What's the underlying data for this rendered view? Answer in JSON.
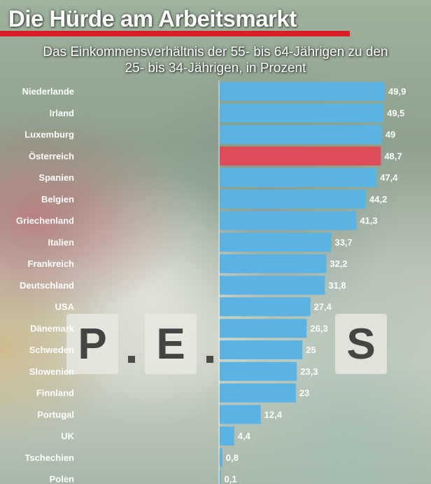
{
  "header": {
    "title": "Die Hürde am Arbeitsmarkt",
    "subtitle_line1": "Das Einkommensverhältnis der 55- bis 64-Jährigen zu den",
    "subtitle_line2": "25- bis 34-Jährigen, in Prozent"
  },
  "background": {
    "tile_letters": [
      "P",
      "E",
      "S"
    ]
  },
  "colors": {
    "bar_default": "#5ab3e2",
    "bar_highlight": "#dc4d57",
    "title_rule": "#d81d25",
    "text": "#ffffff"
  },
  "chart_data": {
    "type": "bar",
    "orientation": "horizontal",
    "title": "Die Hürde am Arbeitsmarkt",
    "subtitle": "Das Einkommensverhältnis der 55- bis 64-Jährigen zu den 25- bis 34-Jährigen, in Prozent",
    "xlim": [
      0,
      50
    ],
    "grid": false,
    "legend": "none",
    "highlight_category": "Österreich",
    "categories": [
      "Niederlande",
      "Irland",
      "Luxemburg",
      "Österreich",
      "Spanien",
      "Belgien",
      "Griechenland",
      "Italien",
      "Frankreich",
      "Deutschland",
      "USA",
      "Dänemark",
      "Schweden",
      "Slowenien",
      "Finnland",
      "Portugal",
      "UK",
      "Tschechien",
      "Polen"
    ],
    "values": [
      49.9,
      49.5,
      49,
      48.7,
      47.4,
      44.2,
      41.3,
      33.7,
      32.2,
      31.8,
      27.4,
      26.3,
      25,
      23.3,
      23,
      12.4,
      4.4,
      0.8,
      0.1
    ],
    "value_labels": [
      "49,9",
      "49,5",
      "49",
      "48,7",
      "47,4",
      "44,2",
      "41,3",
      "33,7",
      "32,2",
      "31,8",
      "27,4",
      "26,3",
      "25",
      "23,3",
      "23",
      "12,4",
      "4,4",
      "0,8",
      "0,1"
    ]
  }
}
